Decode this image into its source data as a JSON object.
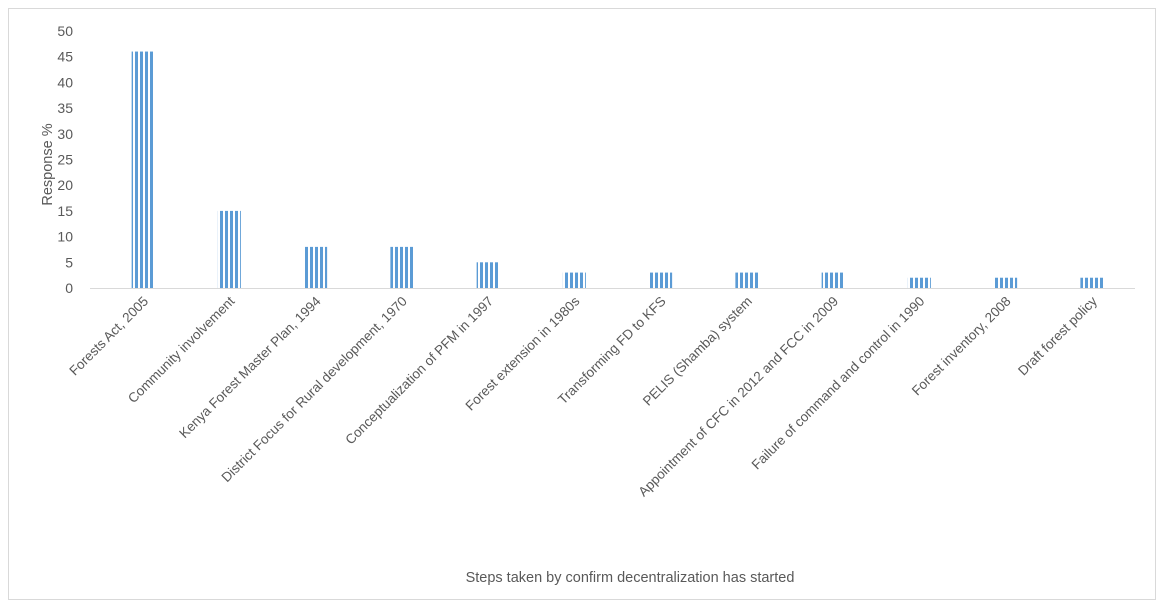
{
  "chart_data": {
    "type": "bar",
    "title": "",
    "xlabel": "Steps taken by confirm decentralization has started",
    "ylabel": "Response %",
    "ylim": [
      0,
      50
    ],
    "yticks": [
      "0",
      "5",
      "10",
      "15",
      "20",
      "25",
      "30",
      "35",
      "40",
      "45",
      "50"
    ],
    "grid": false,
    "legend": "none",
    "bar_color": "#5b9bd5",
    "categories": [
      "Forests Act, 2005",
      "Community involvement",
      "Kenya Forest Master Plan, 1994",
      "District Focus for Rural development, 1970",
      "Conceptualization of PFM in 1997",
      "Forest extension in 1980s",
      "Transforming FD to KFS",
      "PELIS (Shamba) system",
      "Appointment of CFC in 2012 and FCC in 2009",
      "Failure of command and control in 1990",
      "Forest inventory, 2008",
      "Draft forest policy"
    ],
    "values": [
      46,
      15,
      8,
      8,
      5,
      3,
      3,
      3,
      3,
      2,
      2,
      2
    ]
  }
}
